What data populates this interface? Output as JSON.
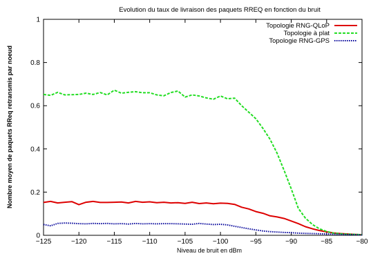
{
  "chart_data": {
    "type": "line",
    "title": "Evolution du taux de livraison des paquets RREQ en fonction du bruit",
    "xlabel": "Niveau de bruit en dBm",
    "ylabel": "Nombre moyen de paquets RReq retransmis par noeud",
    "xlim": [
      -125,
      -80
    ],
    "ylim": [
      0,
      1
    ],
    "x_ticks": [
      "−125",
      "−120",
      "−115",
      "−110",
      "−105",
      "−100",
      "−95",
      "−90",
      "−85",
      "−80"
    ],
    "y_ticks": [
      "0",
      "0.2",
      "0.4",
      "0.6",
      "0.8",
      "1"
    ],
    "grid": false,
    "legend_position": "top-right",
    "x": [
      -125,
      -124,
      -123,
      -122,
      -121,
      -120,
      -119,
      -118,
      -117,
      -116,
      -115,
      -114,
      -113,
      -112,
      -111,
      -110,
      -109,
      -108,
      -107,
      -106,
      -105,
      -104,
      -103,
      -102,
      -101,
      -100,
      -99,
      -98,
      -97,
      -96,
      -95,
      -94,
      -93,
      -92,
      -91,
      -90,
      -89,
      -88,
      -87,
      -86,
      -85,
      -84,
      -83,
      -82,
      -81,
      -80
    ],
    "series": [
      {
        "name": "Topologie RNG-QLoP",
        "color": "#dd0000",
        "dash": "solid",
        "values": [
          0.152,
          0.157,
          0.15,
          0.153,
          0.156,
          0.142,
          0.153,
          0.157,
          0.152,
          0.152,
          0.153,
          0.154,
          0.15,
          0.157,
          0.153,
          0.155,
          0.151,
          0.153,
          0.15,
          0.151,
          0.148,
          0.153,
          0.147,
          0.15,
          0.146,
          0.149,
          0.148,
          0.143,
          0.13,
          0.122,
          0.11,
          0.102,
          0.09,
          0.085,
          0.078,
          0.066,
          0.054,
          0.04,
          0.03,
          0.022,
          0.016,
          0.011,
          0.008,
          0.006,
          0.004,
          0.003
        ]
      },
      {
        "name": "Topologie à plat",
        "color": "#22dd22",
        "dash": "dashed",
        "values": [
          0.652,
          0.648,
          0.662,
          0.65,
          0.651,
          0.652,
          0.658,
          0.652,
          0.661,
          0.65,
          0.672,
          0.658,
          0.662,
          0.665,
          0.66,
          0.66,
          0.65,
          0.646,
          0.661,
          0.668,
          0.64,
          0.65,
          0.645,
          0.636,
          0.63,
          0.645,
          0.632,
          0.635,
          0.6,
          0.57,
          0.54,
          0.495,
          0.445,
          0.38,
          0.3,
          0.215,
          0.125,
          0.08,
          0.05,
          0.03,
          0.018,
          0.01,
          0.007,
          0.005,
          0.004,
          0.003
        ]
      },
      {
        "name": "Topologie RNG-GPS",
        "color": "#000099",
        "dash": "dotted",
        "values": [
          0.05,
          0.044,
          0.055,
          0.057,
          0.056,
          0.054,
          0.053,
          0.055,
          0.054,
          0.055,
          0.053,
          0.054,
          0.052,
          0.055,
          0.053,
          0.054,
          0.053,
          0.054,
          0.054,
          0.053,
          0.052,
          0.051,
          0.055,
          0.052,
          0.05,
          0.051,
          0.048,
          0.042,
          0.036,
          0.03,
          0.025,
          0.02,
          0.017,
          0.015,
          0.013,
          0.012,
          0.01,
          0.009,
          0.008,
          0.007,
          0.006,
          0.005,
          0.004,
          0.003,
          0.003,
          0.002
        ]
      }
    ]
  }
}
